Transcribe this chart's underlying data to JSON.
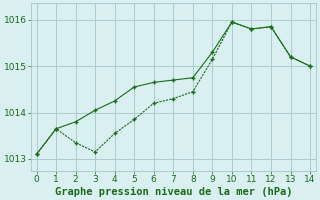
{
  "line1_x": [
    0,
    1,
    2,
    3,
    4,
    5,
    6,
    7,
    8,
    9,
    10,
    11,
    12,
    13,
    14
  ],
  "line1_y": [
    1013.1,
    1013.65,
    1013.8,
    1014.05,
    1014.25,
    1014.55,
    1014.65,
    1014.7,
    1014.75,
    1015.3,
    1015.95,
    1015.8,
    1015.85,
    1015.2,
    1015.0
  ],
  "line2_x": [
    0,
    1,
    2,
    3,
    4,
    5,
    6,
    7,
    8,
    9,
    10,
    11,
    12,
    13,
    14
  ],
  "line2_y": [
    1013.1,
    1013.65,
    1013.35,
    1013.15,
    1013.55,
    1013.85,
    1014.2,
    1014.3,
    1014.45,
    1015.15,
    1015.95,
    1015.8,
    1015.85,
    1015.2,
    1015.0
  ],
  "line_color": "#1a6b1a",
  "bg_color": "#d8f0f0",
  "grid_color": "#aacccc",
  "xlabel": "Graphe pression niveau de la mer (hPa)",
  "xlim": [
    -0.3,
    14.3
  ],
  "ylim": [
    1012.75,
    1016.35
  ],
  "yticks": [
    1013,
    1014,
    1015,
    1016
  ],
  "xticks": [
    0,
    1,
    2,
    3,
    4,
    5,
    6,
    7,
    8,
    9,
    10,
    11,
    12,
    13,
    14
  ],
  "tick_fontsize": 6.5,
  "xlabel_fontsize": 7.5
}
